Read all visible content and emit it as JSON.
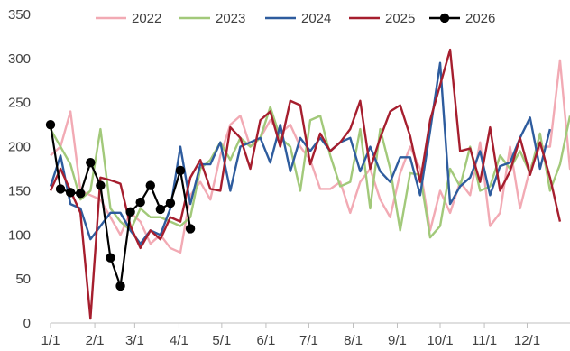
{
  "chart_data": {
    "type": "line",
    "title": "",
    "xlabel": "",
    "ylabel": "",
    "ylim": [
      0,
      350
    ],
    "yticks": [
      0,
      50,
      100,
      150,
      200,
      250,
      300,
      350
    ],
    "x_domain": [
      1,
      53
    ],
    "x_ticks": [
      {
        "label": "1/1",
        "week": 1
      },
      {
        "label": "2/1",
        "week": 5.43
      },
      {
        "label": "3/1",
        "week": 9.43
      },
      {
        "label": "4/1",
        "week": 13.86
      },
      {
        "label": "5/1",
        "week": 18.14
      },
      {
        "label": "6/1",
        "week": 22.57
      },
      {
        "label": "7/1",
        "week": 26.86
      },
      {
        "label": "8/1",
        "week": 31.29
      },
      {
        "label": "9/1",
        "week": 35.71
      },
      {
        "label": "10/1",
        "week": 40
      },
      {
        "label": "11/1",
        "week": 44.43
      },
      {
        "label": "12/1",
        "week": 48.71
      }
    ],
    "grid": false,
    "legend_position": "top",
    "series": [
      {
        "name": "2022",
        "color": "#f2aab4",
        "marker": false,
        "values": [
          190,
          200,
          240,
          150,
          145,
          140,
          120,
          100,
          125,
          115,
          90,
          100,
          85,
          80,
          145,
          160,
          140,
          190,
          225,
          235,
          200,
          210,
          230,
          215,
          225,
          200,
          185,
          152,
          152,
          160,
          125,
          160,
          175,
          140,
          120,
          170,
          200,
          175,
          105,
          150,
          125,
          160,
          145,
          205,
          110,
          125,
          200,
          130,
          175,
          200,
          200,
          298,
          175,
          205
        ]
      },
      {
        "name": "2023",
        "color": "#a2c97a",
        "marker": false,
        "values": [
          220,
          200,
          180,
          140,
          150,
          220,
          130,
          115,
          105,
          130,
          120,
          120,
          115,
          110,
          120,
          175,
          185,
          205,
          185,
          210,
          200,
          210,
          245,
          210,
          200,
          150,
          230,
          235,
          190,
          155,
          160,
          220,
          130,
          220,
          175,
          105,
          170,
          168,
          97,
          110,
          175,
          155,
          200,
          150,
          155,
          190,
          175,
          195,
          170,
          215,
          150,
          180,
          235
        ]
      },
      {
        "name": "2024",
        "color": "#2e5c9e",
        "marker": false,
        "values": [
          155,
          190,
          135,
          130,
          95,
          110,
          125,
          125,
          105,
          90,
          105,
          100,
          130,
          200,
          135,
          180,
          180,
          205,
          150,
          200,
          205,
          210,
          182,
          225,
          172,
          210,
          195,
          210,
          195,
          205,
          210,
          172,
          200,
          172,
          160,
          188,
          188,
          145,
          218,
          295,
          135,
          155,
          165,
          195,
          145,
          178,
          182,
          210,
          233,
          175,
          220
        ]
      },
      {
        "name": "2025",
        "color": "#a61e2e",
        "marker": false,
        "values": [
          150,
          175,
          150,
          125,
          5,
          165,
          162,
          158,
          110,
          85,
          105,
          95,
          120,
          115,
          165,
          185,
          152,
          150,
          222,
          210,
          175,
          230,
          240,
          200,
          252,
          247,
          180,
          215,
          195,
          205,
          220,
          252,
          175,
          210,
          240,
          247,
          212,
          160,
          230,
          270,
          310,
          195,
          198,
          160,
          222,
          150,
          172,
          210,
          168,
          205,
          165,
          115
        ]
      },
      {
        "name": "2026",
        "color": "#000000",
        "marker": true,
        "values": [
          225,
          152,
          148,
          147,
          182,
          156,
          74,
          42,
          126,
          137,
          156,
          129,
          136,
          173,
          107
        ]
      }
    ]
  }
}
